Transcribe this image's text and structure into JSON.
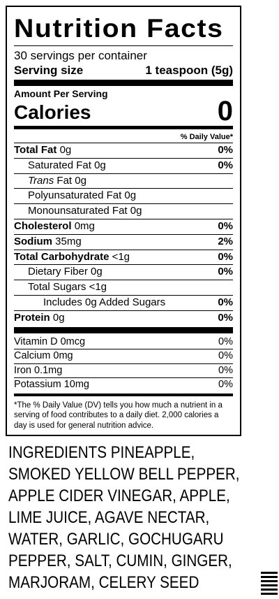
{
  "label": {
    "title": "Nutrition Facts",
    "servings": "30 servings per container",
    "serving_size_label": "Serving size",
    "serving_size_value": "1 teaspoon (5g)",
    "amount_per_serving": "Amount Per Serving",
    "calories_label": "Calories",
    "calories_value": "0",
    "dv_header": "% Daily Value*",
    "nutrients": [
      {
        "name": "Total Fat",
        "amount": "0g",
        "dv": "0%"
      },
      {
        "name": "Saturated Fat",
        "amount": "0g",
        "dv": "0%"
      },
      {
        "name": "Trans",
        "amount": "Fat 0g",
        "dv": ""
      },
      {
        "name": "Polyunsaturated Fat",
        "amount": "0g",
        "dv": ""
      },
      {
        "name": "Monounsaturated Fat",
        "amount": "0g",
        "dv": ""
      },
      {
        "name": "Cholesterol",
        "amount": "0mg",
        "dv": "0%"
      },
      {
        "name": "Sodium",
        "amount": "35mg",
        "dv": "2%"
      },
      {
        "name": "Total Carbohydrate",
        "amount": "<1g",
        "dv": "0%"
      },
      {
        "name": "Dietary Fiber",
        "amount": "0g",
        "dv": "0%"
      },
      {
        "name": "Total Sugars",
        "amount": "<1g",
        "dv": ""
      },
      {
        "name": "Includes 0g Added Sugars",
        "amount": "",
        "dv": "0%"
      },
      {
        "name": "Protein",
        "amount": "0g",
        "dv": "0%"
      }
    ],
    "vitamins": [
      {
        "name": "Vitamin D 0mcg",
        "dv": "0%"
      },
      {
        "name": "Calcium 0mg",
        "dv": "0%"
      },
      {
        "name": "Iron 0.1mg",
        "dv": "0%"
      },
      {
        "name": "Potassium 10mg",
        "dv": "0%"
      }
    ],
    "footnote": "*The % Daily Value (DV) tells you how much a nutrient in a serving of food contributes to a daily diet. 2,000 calories a day is used for general nutrition advice."
  },
  "ingredients": {
    "lines": [
      "INGREDIENTS PINEAPPLE,",
      "SMOKED YELLOW BELL PEPPER,",
      "APPLE CIDER VINEGAR, APPLE,",
      "LIME JUICE, AGAVE NECTAR,",
      "WATER, GARLIC, GOCHUGARU",
      "PEPPER, SALT, CUMIN, GINGER,",
      "MARJORAM, CELERY SEED"
    ]
  }
}
